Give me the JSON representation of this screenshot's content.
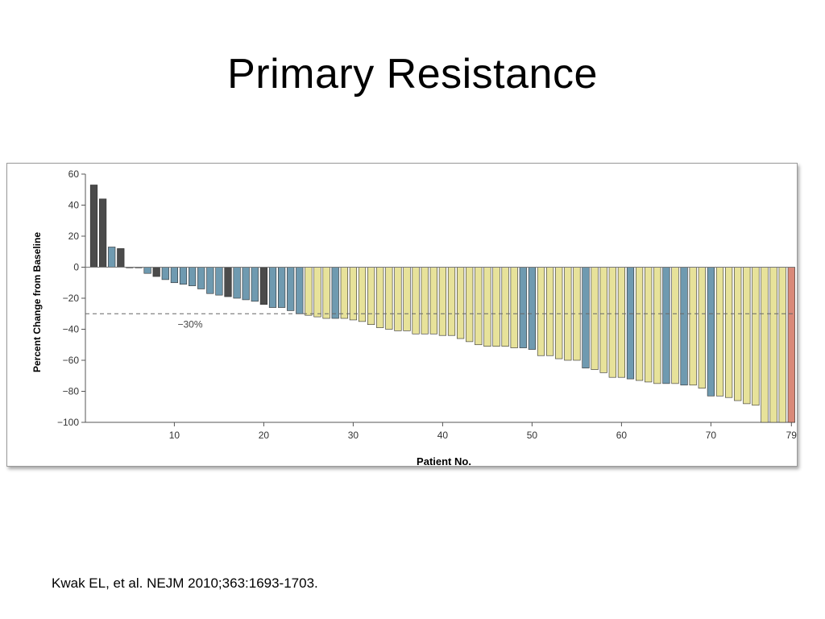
{
  "slide": {
    "title": "Primary Resistance",
    "citation": "Kwak EL, et al. NEJM 2010;363:1693-1703."
  },
  "colors": {
    "dark": "#4b4b4b",
    "blue": "#6f9ab0",
    "yellow": "#e7e29a",
    "red": "#d98979",
    "bar_stroke": "#2f2f2f"
  },
  "chart_data": {
    "type": "bar",
    "title": "",
    "xlabel": "Patient No.",
    "ylabel": "Percent Change from Baseline",
    "ylim": [
      -100,
      60
    ],
    "yticks": [
      60,
      40,
      20,
      0,
      -20,
      -40,
      -60,
      -80,
      -100
    ],
    "ytick_labels": [
      "60",
      "40",
      "20",
      "0",
      "−20",
      "−40",
      "−60",
      "−80",
      "−100"
    ],
    "xticks": [
      10,
      20,
      30,
      40,
      50,
      60,
      70,
      79
    ],
    "threshold": {
      "value": -30,
      "label": "−30%"
    },
    "legend": "none",
    "grid": false,
    "bars": [
      {
        "patient": 1,
        "value": 53,
        "color": "dark"
      },
      {
        "patient": 2,
        "value": 44,
        "color": "dark"
      },
      {
        "patient": 3,
        "value": 13,
        "color": "blue"
      },
      {
        "patient": 4,
        "value": 12,
        "color": "dark"
      },
      {
        "patient": 5,
        "value": 0,
        "color": "dark"
      },
      {
        "patient": 6,
        "value": 0,
        "color": "dark"
      },
      {
        "patient": 7,
        "value": -4,
        "color": "blue"
      },
      {
        "patient": 8,
        "value": -6,
        "color": "dark"
      },
      {
        "patient": 9,
        "value": -8,
        "color": "blue"
      },
      {
        "patient": 10,
        "value": -10,
        "color": "blue"
      },
      {
        "patient": 11,
        "value": -11,
        "color": "blue"
      },
      {
        "patient": 12,
        "value": -12,
        "color": "blue"
      },
      {
        "patient": 13,
        "value": -14,
        "color": "blue"
      },
      {
        "patient": 14,
        "value": -17,
        "color": "blue"
      },
      {
        "patient": 15,
        "value": -18,
        "color": "blue"
      },
      {
        "patient": 16,
        "value": -19,
        "color": "dark"
      },
      {
        "patient": 17,
        "value": -20,
        "color": "blue"
      },
      {
        "patient": 18,
        "value": -21,
        "color": "blue"
      },
      {
        "patient": 19,
        "value": -22,
        "color": "blue"
      },
      {
        "patient": 20,
        "value": -24,
        "color": "dark"
      },
      {
        "patient": 21,
        "value": -26,
        "color": "blue"
      },
      {
        "patient": 22,
        "value": -26,
        "color": "blue"
      },
      {
        "patient": 23,
        "value": -28,
        "color": "blue"
      },
      {
        "patient": 24,
        "value": -30,
        "color": "blue"
      },
      {
        "patient": 25,
        "value": -31,
        "color": "yellow"
      },
      {
        "patient": 26,
        "value": -32,
        "color": "yellow"
      },
      {
        "patient": 27,
        "value": -33,
        "color": "yellow"
      },
      {
        "patient": 28,
        "value": -33,
        "color": "blue"
      },
      {
        "patient": 29,
        "value": -33,
        "color": "yellow"
      },
      {
        "patient": 30,
        "value": -34,
        "color": "yellow"
      },
      {
        "patient": 31,
        "value": -35,
        "color": "yellow"
      },
      {
        "patient": 32,
        "value": -37,
        "color": "yellow"
      },
      {
        "patient": 33,
        "value": -39,
        "color": "yellow"
      },
      {
        "patient": 34,
        "value": -40,
        "color": "yellow"
      },
      {
        "patient": 35,
        "value": -41,
        "color": "yellow"
      },
      {
        "patient": 36,
        "value": -41,
        "color": "yellow"
      },
      {
        "patient": 37,
        "value": -43,
        "color": "yellow"
      },
      {
        "patient": 38,
        "value": -43,
        "color": "yellow"
      },
      {
        "patient": 39,
        "value": -43,
        "color": "yellow"
      },
      {
        "patient": 40,
        "value": -44,
        "color": "yellow"
      },
      {
        "patient": 41,
        "value": -44,
        "color": "yellow"
      },
      {
        "patient": 42,
        "value": -46,
        "color": "yellow"
      },
      {
        "patient": 43,
        "value": -48,
        "color": "yellow"
      },
      {
        "patient": 44,
        "value": -50,
        "color": "yellow"
      },
      {
        "patient": 45,
        "value": -51,
        "color": "yellow"
      },
      {
        "patient": 46,
        "value": -51,
        "color": "yellow"
      },
      {
        "patient": 47,
        "value": -51,
        "color": "yellow"
      },
      {
        "patient": 48,
        "value": -52,
        "color": "yellow"
      },
      {
        "patient": 49,
        "value": -52,
        "color": "blue"
      },
      {
        "patient": 50,
        "value": -53,
        "color": "blue"
      },
      {
        "patient": 51,
        "value": -57,
        "color": "yellow"
      },
      {
        "patient": 52,
        "value": -57,
        "color": "yellow"
      },
      {
        "patient": 53,
        "value": -59,
        "color": "yellow"
      },
      {
        "patient": 54,
        "value": -60,
        "color": "yellow"
      },
      {
        "patient": 55,
        "value": -60,
        "color": "yellow"
      },
      {
        "patient": 56,
        "value": -65,
        "color": "blue"
      },
      {
        "patient": 57,
        "value": -66,
        "color": "yellow"
      },
      {
        "patient": 58,
        "value": -68,
        "color": "yellow"
      },
      {
        "patient": 59,
        "value": -71,
        "color": "yellow"
      },
      {
        "patient": 60,
        "value": -71,
        "color": "yellow"
      },
      {
        "patient": 61,
        "value": -72,
        "color": "blue"
      },
      {
        "patient": 62,
        "value": -73,
        "color": "yellow"
      },
      {
        "patient": 63,
        "value": -74,
        "color": "yellow"
      },
      {
        "patient": 64,
        "value": -75,
        "color": "yellow"
      },
      {
        "patient": 65,
        "value": -75,
        "color": "blue"
      },
      {
        "patient": 66,
        "value": -75,
        "color": "yellow"
      },
      {
        "patient": 67,
        "value": -76,
        "color": "blue"
      },
      {
        "patient": 68,
        "value": -76,
        "color": "yellow"
      },
      {
        "patient": 69,
        "value": -78,
        "color": "yellow"
      },
      {
        "patient": 70,
        "value": -83,
        "color": "blue"
      },
      {
        "patient": 71,
        "value": -83,
        "color": "yellow"
      },
      {
        "patient": 72,
        "value": -84,
        "color": "yellow"
      },
      {
        "patient": 73,
        "value": -86,
        "color": "yellow"
      },
      {
        "patient": 74,
        "value": -88,
        "color": "yellow"
      },
      {
        "patient": 75,
        "value": -89,
        "color": "yellow"
      },
      {
        "patient": 76,
        "value": -100,
        "color": "yellow"
      },
      {
        "patient": 77,
        "value": -100,
        "color": "yellow"
      },
      {
        "patient": 78,
        "value": -100,
        "color": "yellow"
      },
      {
        "patient": 79,
        "value": -100,
        "color": "red"
      }
    ]
  }
}
